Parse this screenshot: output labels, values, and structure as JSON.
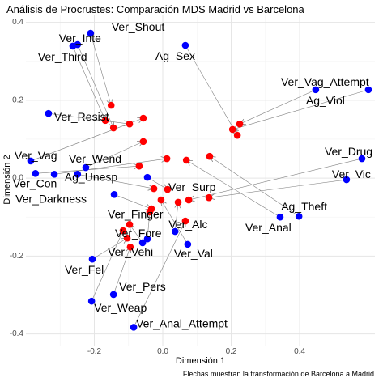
{
  "chart_data": {
    "type": "scatter",
    "title": "Análisis de Procrustes: Comparación MDS Madrid vs Barcelona",
    "xlabel": "Dimensión 1",
    "ylabel": "Dimensión 2",
    "caption": "Flechas muestran la transformación de Barcelona a Madrid",
    "xlim": [
      -0.4,
      0.62
    ],
    "ylim": [
      -0.43,
      0.42
    ],
    "xticks": [
      {
        "value": -0.2,
        "label": "-0.2"
      },
      {
        "value": 0.0,
        "label": "0.0"
      },
      {
        "value": 0.2,
        "label": "0.2"
      },
      {
        "value": 0.4,
        "label": "0.4"
      }
    ],
    "yticks": [
      {
        "value": -0.4,
        "label": "-0.4"
      },
      {
        "value": -0.2,
        "label": "-0.2"
      },
      {
        "value": 0.0,
        "label": "0.0"
      },
      {
        "value": 0.2,
        "label": "0.2"
      },
      {
        "value": 0.4,
        "label": "0.4"
      }
    ],
    "grid": true,
    "legend": false,
    "colors": {
      "blue_points": "#0000FF",
      "red_points": "#FF0000",
      "arrows": "#808080"
    },
    "pairs": [
      {
        "label": "Ver_Shout",
        "blue": [
          -0.211,
          0.372
        ],
        "red": [
          -0.151,
          0.187
        ]
      },
      {
        "label": "Ver_Inte",
        "blue": [
          -0.249,
          0.343
        ],
        "red": [
          -0.144,
          0.129
        ]
      },
      {
        "label": "Ver_Third",
        "blue": [
          -0.263,
          0.339
        ],
        "red": [
          -0.168,
          0.148
        ]
      },
      {
        "label": "Ag_Sex",
        "blue": [
          0.066,
          0.341
        ],
        "red": [
          0.218,
          0.11
        ]
      },
      {
        "label": "Ver_Vag_Attempt",
        "blue": [
          0.601,
          0.227
        ],
        "red": [
          0.204,
          0.125
        ]
      },
      {
        "label": "Ag_Viol",
        "blue": [
          0.447,
          0.227
        ],
        "red": [
          0.225,
          0.139
        ]
      },
      {
        "label": "Ver_Resist",
        "blue": [
          -0.334,
          0.166
        ],
        "red": [
          -0.097,
          0.139
        ]
      },
      {
        "label": "Ver_Drug",
        "blue": [
          0.582,
          0.05
        ],
        "red": [
          0.076,
          -0.056
        ]
      },
      {
        "label": "Ver_Vag",
        "blue": [
          -0.386,
          0.044
        ],
        "red": [
          -0.057,
          0.154
        ]
      },
      {
        "label": "Ver_Wend",
        "blue": [
          -0.225,
          0.027
        ],
        "red": [
          -0.057,
          0.094
        ]
      },
      {
        "label": "Ver_Con",
        "blue": [
          -0.372,
          0.012
        ],
        "red": [
          -0.069,
          0.031
        ]
      },
      {
        "label": "Ag_Unesp",
        "blue": [
          -0.249,
          0.01
        ],
        "red": [
          -0.026,
          -0.027
        ]
      },
      {
        "label": "Ver_Vic",
        "blue": [
          0.537,
          -0.004
        ],
        "red": [
          0.135,
          -0.05
        ]
      },
      {
        "label": "Ver_Darkness",
        "blue": [
          -0.317,
          0.01
        ],
        "red": [
          0.012,
          0.05
        ]
      },
      {
        "label": "Ver_Surp",
        "blue": [
          -0.045,
          0.002
        ],
        "red": [
          0.014,
          -0.029
        ]
      },
      {
        "label": "Ver_Finger",
        "blue": [
          -0.142,
          -0.042
        ],
        "red": [
          -0.033,
          -0.079
        ]
      },
      {
        "label": "Ag_Theft",
        "blue": [
          0.398,
          -0.098
        ],
        "red": [
          0.137,
          0.056
        ]
      },
      {
        "label": "Ver_Alc",
        "blue": [
          0.036,
          -0.137
        ],
        "red": [
          0.045,
          -0.062
        ]
      },
      {
        "label": "Ver_Anal",
        "blue": [
          0.343,
          -0.1
        ],
        "red": [
          0.069,
          0.046
        ]
      },
      {
        "label": "Ver_Fore",
        "blue": [
          -0.045,
          -0.156
        ],
        "red": [
          -0.038,
          -0.087
        ]
      },
      {
        "label": "Ver_Vehi",
        "blue": [
          -0.059,
          -0.166
        ],
        "red": [
          -0.097,
          -0.119
        ]
      },
      {
        "label": "Ver_Val",
        "blue": [
          0.073,
          -0.17
        ],
        "red": [
          -0.005,
          -0.056
        ]
      },
      {
        "label": "Ver_Fel",
        "blue": [
          -0.206,
          -0.208
        ],
        "red": [
          -0.104,
          -0.154
        ]
      },
      {
        "label": "Ver_Pers",
        "blue": [
          -0.144,
          -0.299
        ],
        "red": [
          -0.095,
          -0.177
        ]
      },
      {
        "label": "Ver_Weap",
        "blue": [
          -0.208,
          -0.316
        ],
        "red": [
          -0.116,
          -0.135
        ]
      },
      {
        "label": "Ver_Anal_Attempt",
        "blue": [
          -0.085,
          -0.383
        ],
        "red": [
          0.066,
          -0.11
        ]
      }
    ]
  }
}
